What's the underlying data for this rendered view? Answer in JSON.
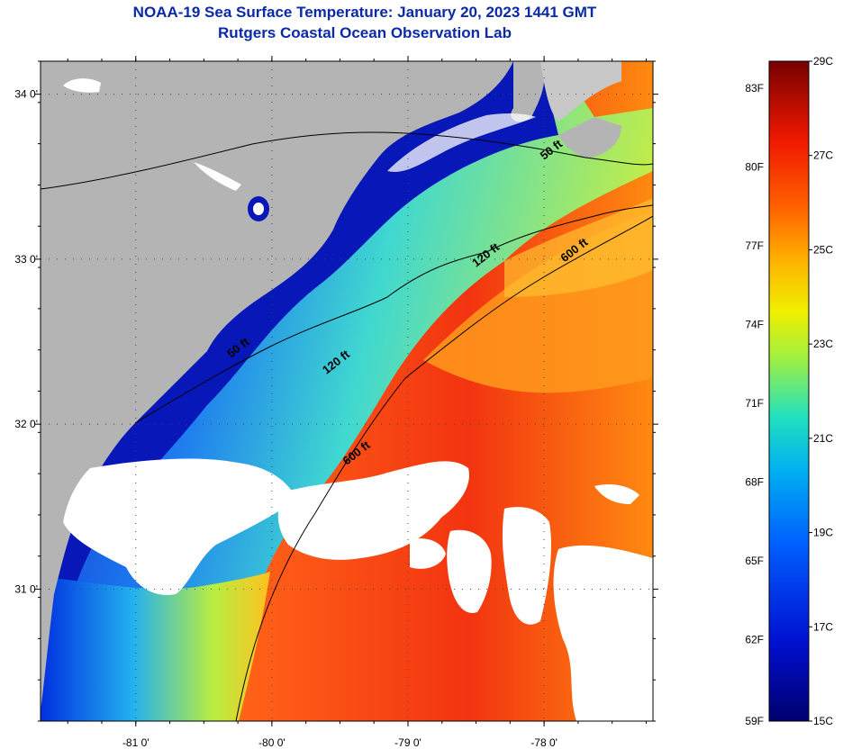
{
  "title": {
    "line1": "NOAA-19 Sea Surface Temperature:  January 20, 2023 1441 GMT",
    "line2": "Rutgers Coastal Ocean Observation Lab"
  },
  "map": {
    "lat_ticks": [
      {
        "value": 34,
        "label": "34 0'"
      },
      {
        "value": 33,
        "label": "33 0'"
      },
      {
        "value": 32,
        "label": "32 0'"
      },
      {
        "value": 31,
        "label": "31 0'"
      }
    ],
    "lon_ticks": [
      {
        "value": -81,
        "label": "-81 0'"
      },
      {
        "value": -80,
        "label": "-80 0'"
      },
      {
        "value": -79,
        "label": "-79 0'"
      },
      {
        "value": -78,
        "label": "-78 0'"
      }
    ],
    "lat_range": [
      30.2,
      34.2
    ],
    "lon_range": [
      -81.7,
      -77.2
    ],
    "isobath_labels": [
      {
        "label": "50 ft",
        "lon": -78.0,
        "lat": 33.6
      },
      {
        "label": "120 ft",
        "lon": -78.5,
        "lat": 32.95
      },
      {
        "label": "600 ft",
        "lon": -77.85,
        "lat": 32.98
      },
      {
        "label": "50 ft",
        "lon": -80.3,
        "lat": 32.4
      },
      {
        "label": "120 ft",
        "lon": -79.6,
        "lat": 32.3
      },
      {
        "label": "600 ft",
        "lon": -79.45,
        "lat": 31.75
      }
    ],
    "colors": {
      "land": "#b4b4b4",
      "cloud": "#ffffff"
    }
  },
  "colorbar": {
    "f_labels": [
      "83F",
      "80F",
      "77F",
      "74F",
      "71F",
      "68F",
      "65F",
      "62F",
      "59F"
    ],
    "c_labels": [
      "29C",
      "27C",
      "25C",
      "23C",
      "21C",
      "19C",
      "17C",
      "15C"
    ],
    "c_range": [
      15,
      29
    ]
  }
}
